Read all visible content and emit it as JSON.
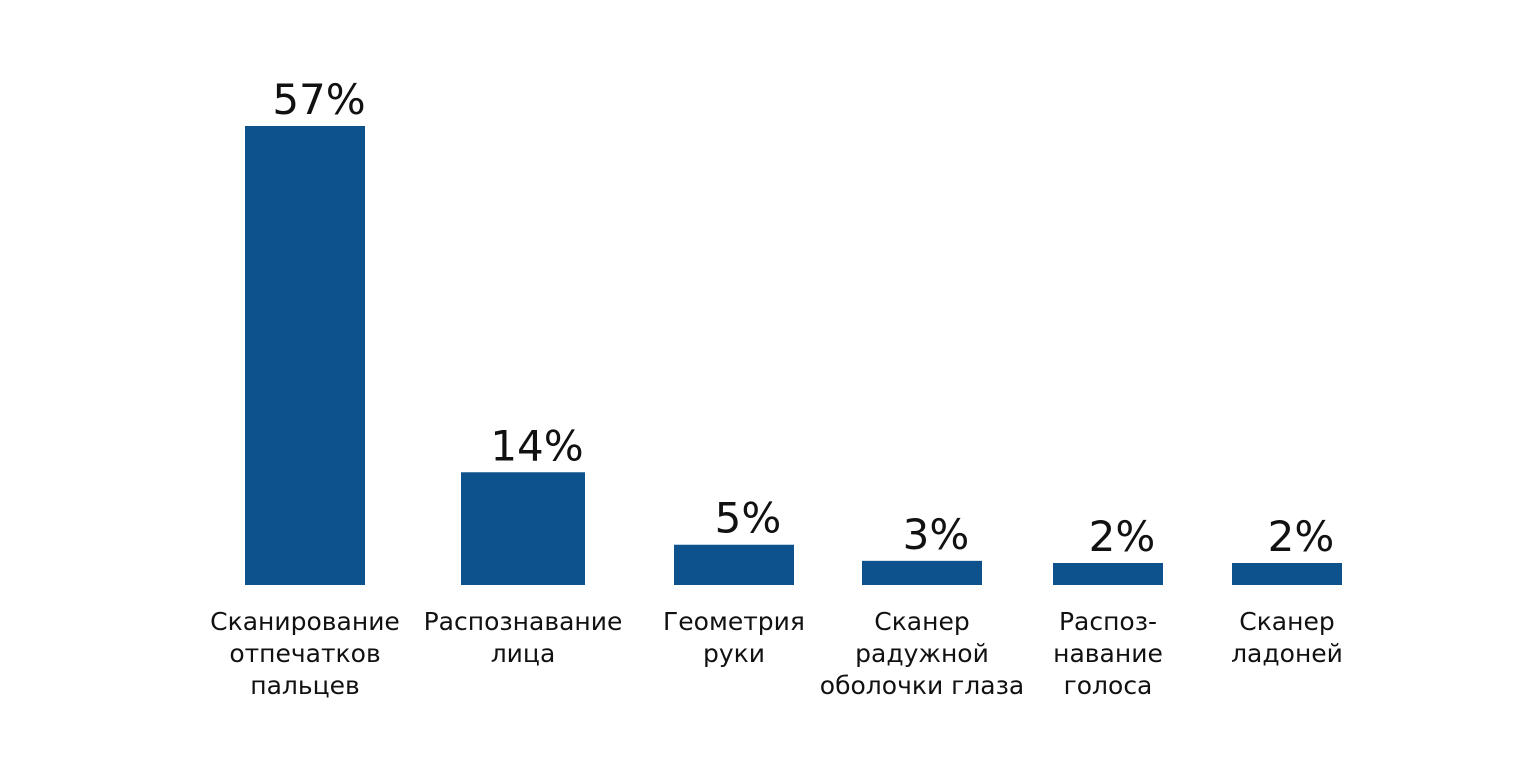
{
  "chart_data": {
    "type": "bar",
    "title": "",
    "xlabel": "",
    "ylabel": "",
    "categories": [
      [
        "Сканирование",
        "отпечатков",
        "пальцев"
      ],
      [
        "Распознавание",
        "лица"
      ],
      [
        "Геометрия",
        "руки"
      ],
      [
        "Сканер",
        "радужной",
        "оболочки глаза"
      ],
      [
        "Распоз-",
        "навание",
        "голоса"
      ],
      [
        "Сканер",
        "ладоней"
      ]
    ],
    "values": [
      57,
      14,
      5,
      3,
      2,
      2
    ],
    "value_labels": [
      "57%",
      "14%",
      "5%",
      "3%",
      "2%",
      "2%"
    ],
    "unit": "%",
    "ylim": [
      0,
      57
    ],
    "bar_color": "#0d528c",
    "grid": false,
    "legend": "none"
  }
}
